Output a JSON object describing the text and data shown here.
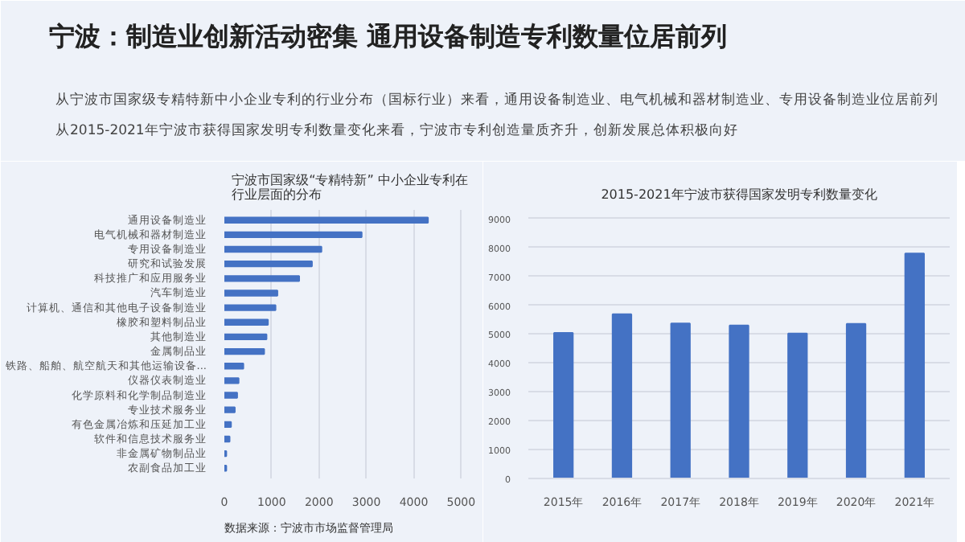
{
  "chart_data": [
    {
      "type": "other",
      "title": "宁波：制造业创新活动密集 通用设备制造专利数量位居前列",
      "annotations": [
        "从宁波市国家级专精特新中小企业专利的行业分布（国标行业）来看，通用设备制造业、电气机械和器材制造业、专用设备制造业位居前列",
        "从2015-2021年宁波市获得国家发明专利数量变化来看，宁波市专利创造量质齐升，创新发展总体积极向好"
      ]
    },
    {
      "type": "bar",
      "orientation": "horizontal",
      "title": "宁波市国家级“专精特新” 中小企业专利在行业层面的分布",
      "categories": [
        "通用设备制造业",
        "电气机械和器材制造业",
        "专用设备制造业",
        "研究和试验发展",
        "科技推广和应用服务业",
        "汽车制造业",
        "计算机、通信和其他电子设备制造业",
        "橡胶和塑料制品业",
        "其他制造业",
        "金属制品业",
        "铁路、船舶、航空航天和其他运输设备...",
        "仪器仪表制造业",
        "化学原料和化学制品制造业",
        "专业技术服务业",
        "有色金属冶炼和压延加工业",
        "软件和信息技术服务业",
        "非金属矿物制品业",
        "农副食品加工业"
      ],
      "values": [
        4300,
        2900,
        2050,
        1850,
        1580,
        1120,
        1080,
        920,
        890,
        840,
        400,
        300,
        270,
        220,
        140,
        110,
        40,
        40
      ],
      "color": "#4472c4",
      "xlim": [
        0,
        5300
      ],
      "xticks": [
        0,
        1000,
        2000,
        3000,
        4000,
        5000
      ],
      "grid": "x",
      "annotations": [
        "数据来源：宁波市市场监督管理局"
      ]
    },
    {
      "type": "bar",
      "title": "2015-2021年宁波市获得国家发明专利数量变化",
      "categories": [
        "2015年",
        "2016年",
        "2017年",
        "2018年",
        "2019年",
        "2020年",
        "2021年"
      ],
      "values": [
        5040,
        5690,
        5370,
        5300,
        5020,
        5350,
        7790
      ],
      "color": "#4472c4",
      "ylim": [
        0,
        9300
      ],
      "yticks": [
        0,
        1000,
        2000,
        3000,
        4000,
        5000,
        6000,
        7000,
        8000,
        9000
      ],
      "grid": "y"
    }
  ]
}
